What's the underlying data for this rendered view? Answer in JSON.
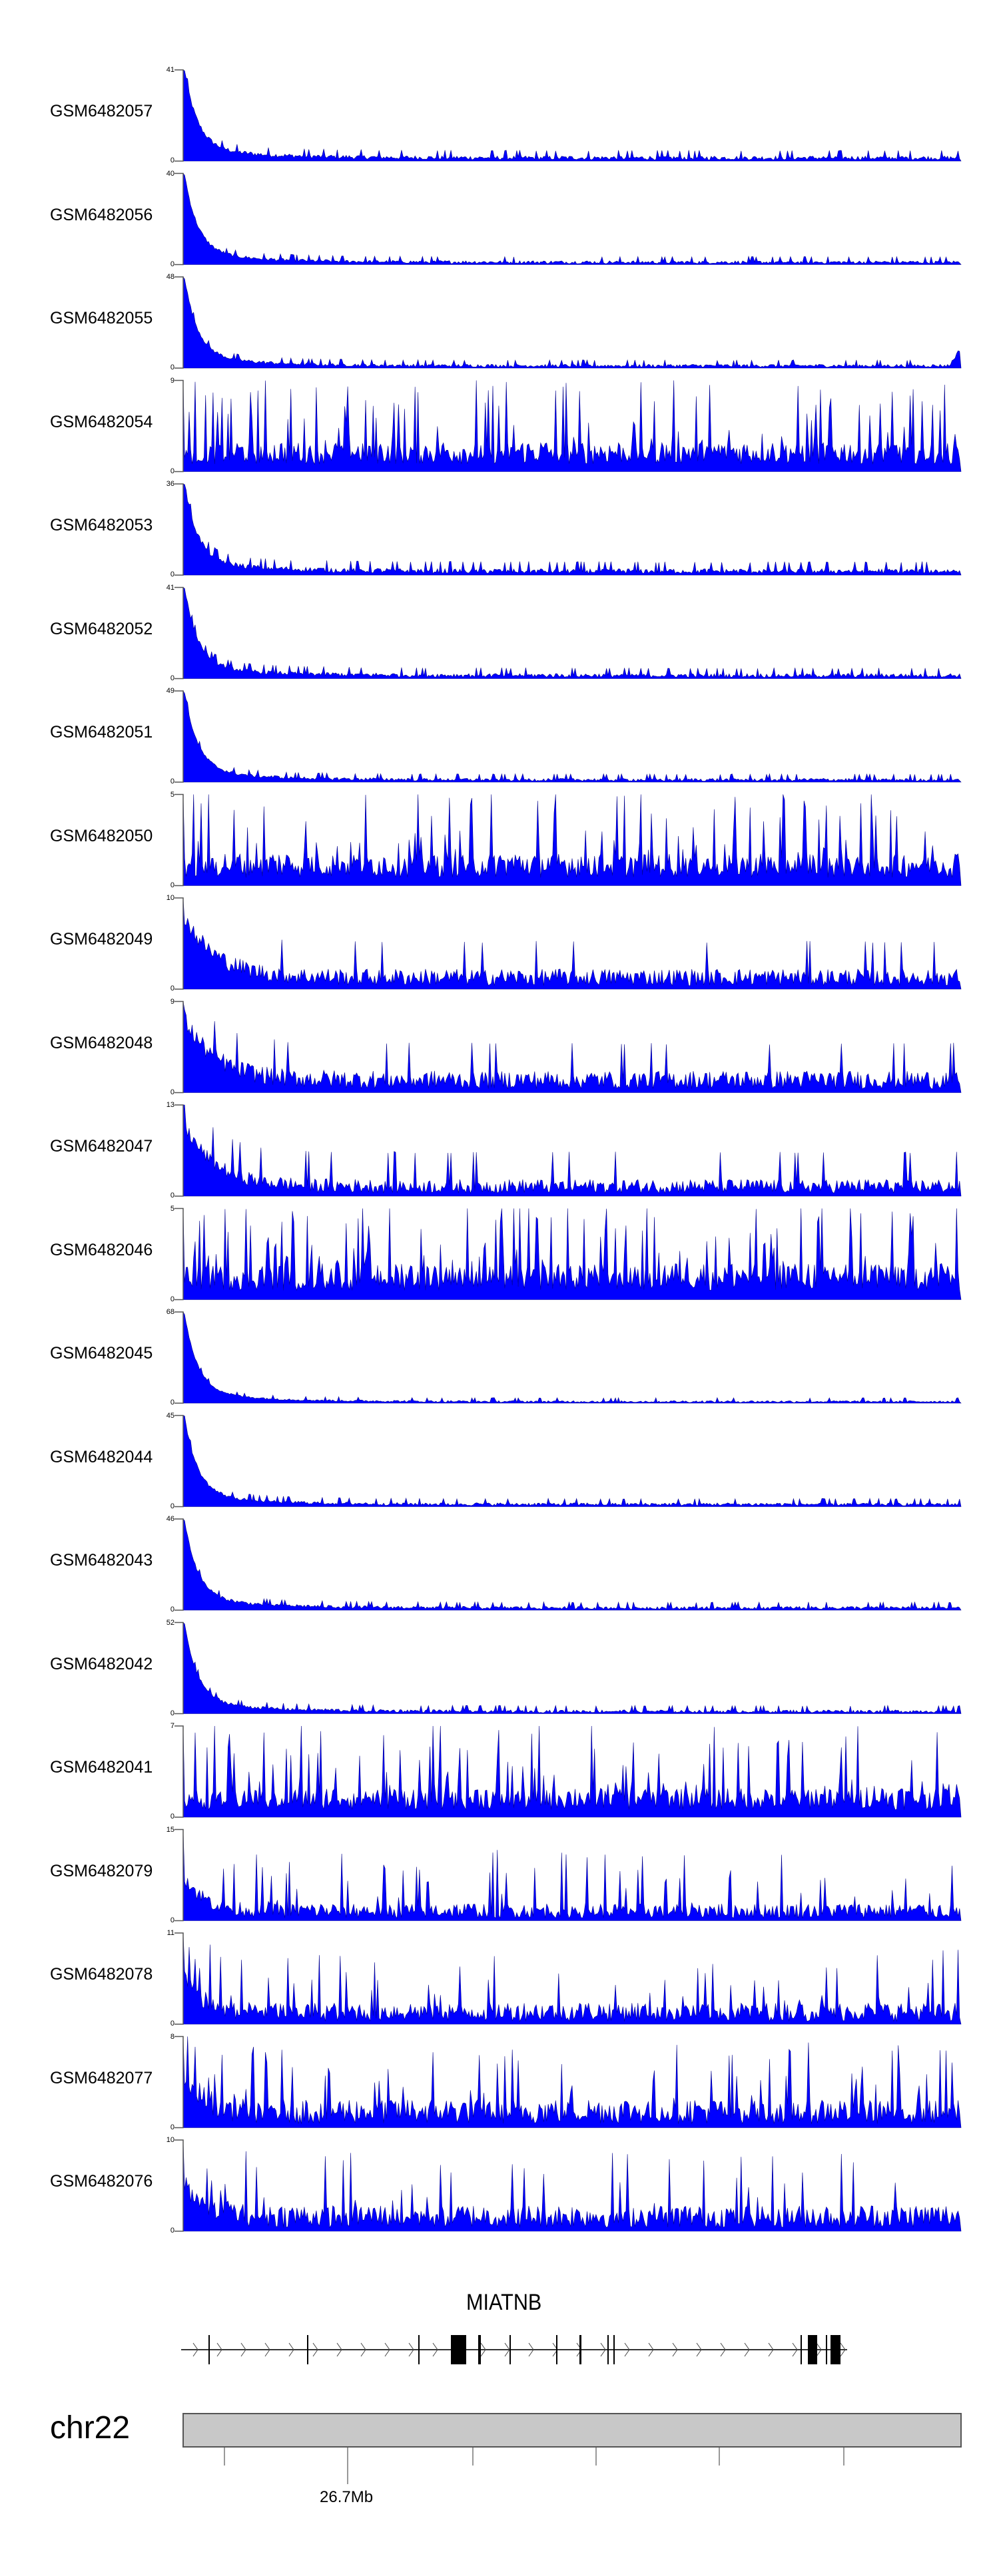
{
  "chart_data": {
    "type": "area",
    "title": "",
    "color": "#0000ff",
    "outline_color": "#00008b",
    "x_region_note": "chr22 around 26.7Mb",
    "tracks": [
      {
        "name": "GSM6482057",
        "ymax": 41,
        "ymin": 0,
        "profile": "spike-decay",
        "base": 0.04
      },
      {
        "name": "GSM6482056",
        "ymax": 40,
        "ymin": 0,
        "profile": "spike-decay",
        "base": 0.03
      },
      {
        "name": "GSM6482055",
        "ymax": 48,
        "ymin": 0,
        "profile": "spike-decay",
        "base": 0.03,
        "end_rise": 0.2
      },
      {
        "name": "GSM6482054",
        "ymax": 9,
        "ymin": 0,
        "profile": "noisy",
        "base": 0.2
      },
      {
        "name": "GSM6482053",
        "ymax": 36,
        "ymin": 0,
        "profile": "spike-decay",
        "base": 0.05
      },
      {
        "name": "GSM6482052",
        "ymax": 41,
        "ymin": 0,
        "profile": "spike-decay",
        "base": 0.04
      },
      {
        "name": "GSM6482051",
        "ymax": 49,
        "ymin": 0,
        "profile": "spike-decay",
        "base": 0.03
      },
      {
        "name": "GSM6482050",
        "ymax": 5,
        "ymin": 0,
        "profile": "noisy",
        "base": 0.22
      },
      {
        "name": "GSM6482049",
        "ymax": 10,
        "ymin": 0,
        "profile": "mid-decay",
        "base": 0.12
      },
      {
        "name": "GSM6482048",
        "ymax": 9,
        "ymin": 0,
        "profile": "mid-decay",
        "base": 0.13
      },
      {
        "name": "GSM6482047",
        "ymax": 13,
        "ymin": 0,
        "profile": "mid-decay",
        "base": 0.1
      },
      {
        "name": "GSM6482046",
        "ymax": 5,
        "ymin": 0,
        "profile": "noisy",
        "base": 0.25
      },
      {
        "name": "GSM6482045",
        "ymax": 68,
        "ymin": 0,
        "profile": "spike-decay",
        "base": 0.02
      },
      {
        "name": "GSM6482044",
        "ymax": 45,
        "ymin": 0,
        "profile": "spike-decay",
        "base": 0.03
      },
      {
        "name": "GSM6482043",
        "ymax": 46,
        "ymin": 0,
        "profile": "spike-decay",
        "base": 0.03
      },
      {
        "name": "GSM6482042",
        "ymax": 52,
        "ymin": 0,
        "profile": "spike-decay",
        "base": 0.03
      },
      {
        "name": "GSM6482041",
        "ymax": 7,
        "ymin": 0,
        "profile": "noisy",
        "base": 0.2
      },
      {
        "name": "GSM6482079",
        "ymax": 15,
        "ymin": 0,
        "profile": "mountain",
        "base": 0.12
      },
      {
        "name": "GSM6482078",
        "ymax": 11,
        "ymin": 0,
        "profile": "mountain",
        "base": 0.15
      },
      {
        "name": "GSM6482077",
        "ymax": 8,
        "ymin": 0,
        "profile": "mountain",
        "base": 0.2
      },
      {
        "name": "GSM6482076",
        "ymax": 10,
        "ymin": 0,
        "profile": "mountain",
        "base": 0.18
      }
    ],
    "gene": {
      "name": "MIATNB",
      "strand": "+"
    },
    "ideogram": {
      "chromosome": "chr22",
      "tick_label": "26.7Mb",
      "tick_count": 6,
      "labeled_tick_index": 1
    }
  }
}
